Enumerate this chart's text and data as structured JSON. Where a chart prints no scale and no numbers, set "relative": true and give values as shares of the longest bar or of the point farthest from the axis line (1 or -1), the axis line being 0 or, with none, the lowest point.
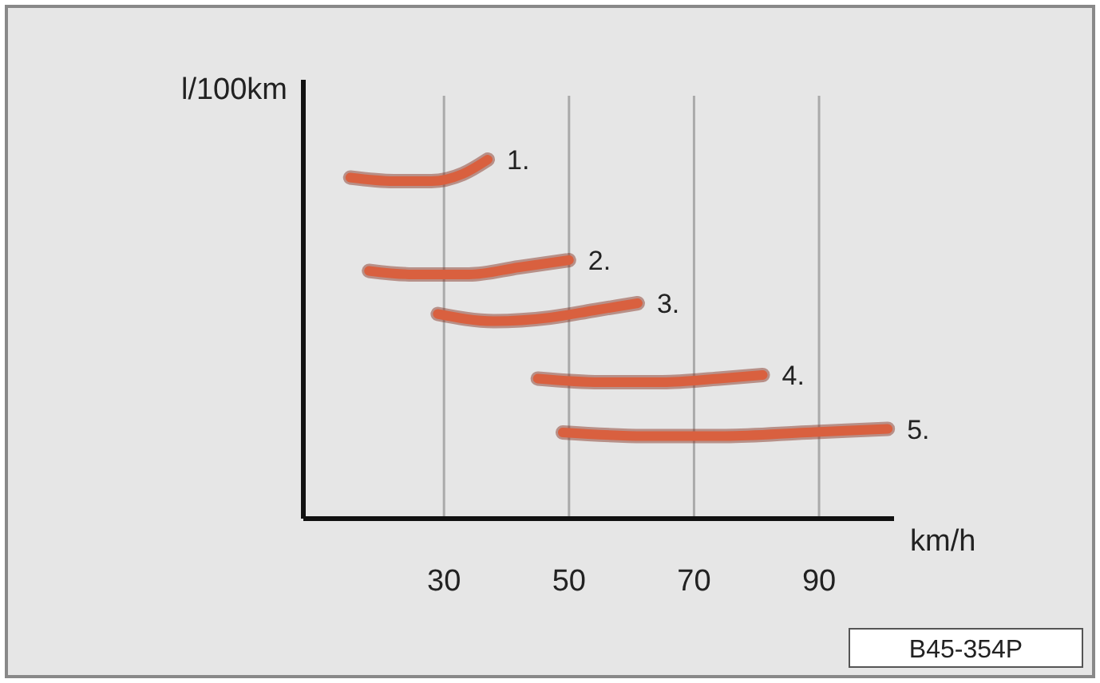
{
  "chart_data": {
    "type": "line",
    "relative": true,
    "xlabel": "km/h",
    "ylabel": "l/100km",
    "xlim": [
      7.5,
      102
    ],
    "xticks": [
      30,
      50,
      70,
      90
    ],
    "grid": "x",
    "line_style": "solid",
    "marker": "none",
    "annotations": [
      "B45-354P"
    ],
    "series": [
      {
        "name": "1.",
        "color": "#d9603f",
        "x": [
          15,
          22,
          28,
          33,
          37
        ],
        "values": [
          0.95,
          0.94,
          0.94,
          0.96,
          1.0
        ]
      },
      {
        "name": "2.",
        "color": "#d9603f",
        "x": [
          18,
          25,
          34,
          42,
          50
        ],
        "values": [
          0.69,
          0.68,
          0.68,
          0.7,
          0.72
        ]
      },
      {
        "name": "3.",
        "color": "#d9603f",
        "x": [
          29,
          38,
          47,
          54,
          61
        ],
        "values": [
          0.57,
          0.55,
          0.56,
          0.58,
          0.6
        ]
      },
      {
        "name": "4.",
        "color": "#d9603f",
        "x": [
          45,
          55,
          65,
          74,
          81
        ],
        "values": [
          0.39,
          0.38,
          0.38,
          0.39,
          0.4
        ]
      },
      {
        "name": "5.",
        "color": "#d9603f",
        "x": [
          49,
          62,
          75,
          88,
          101
        ],
        "values": [
          0.24,
          0.23,
          0.23,
          0.24,
          0.25
        ]
      }
    ]
  }
}
